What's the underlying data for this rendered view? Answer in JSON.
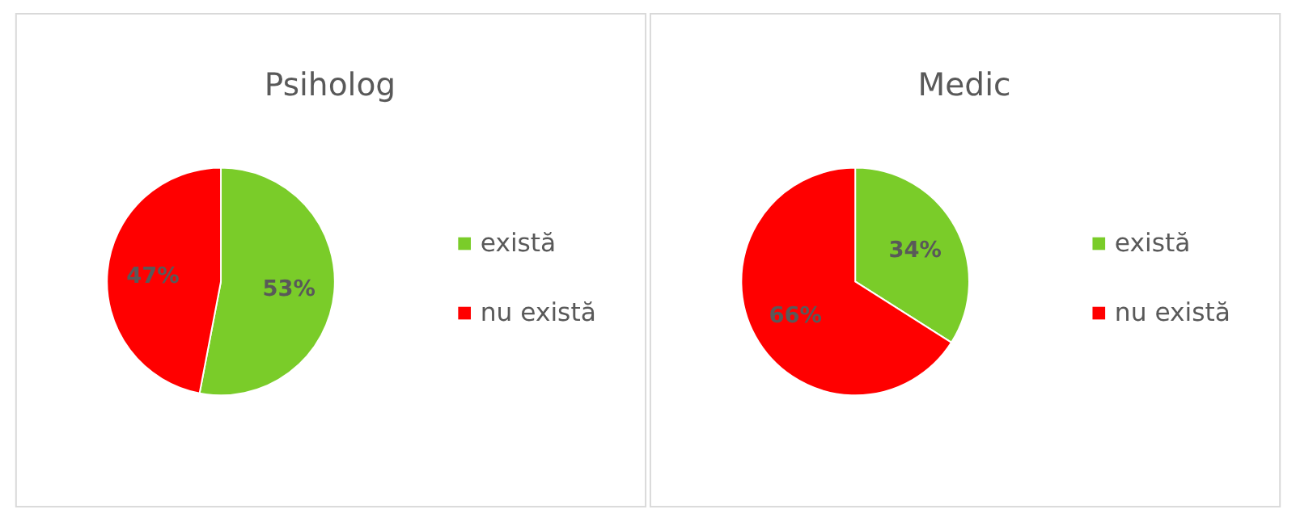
{
  "chart_data": [
    {
      "type": "pie",
      "title": "Psiholog",
      "categories": [
        "există",
        "nu există"
      ],
      "values": [
        53,
        47
      ],
      "colors": [
        "#7acc29",
        "#ff0000"
      ],
      "value_labels": [
        "53%",
        "47%"
      ],
      "legend": "right"
    },
    {
      "type": "pie",
      "title": "Medic",
      "categories": [
        "există",
        "nu există"
      ],
      "values": [
        34,
        66
      ],
      "colors": [
        "#7acc29",
        "#ff0000"
      ],
      "value_labels": [
        "34%",
        "66%"
      ],
      "legend": "right"
    }
  ]
}
